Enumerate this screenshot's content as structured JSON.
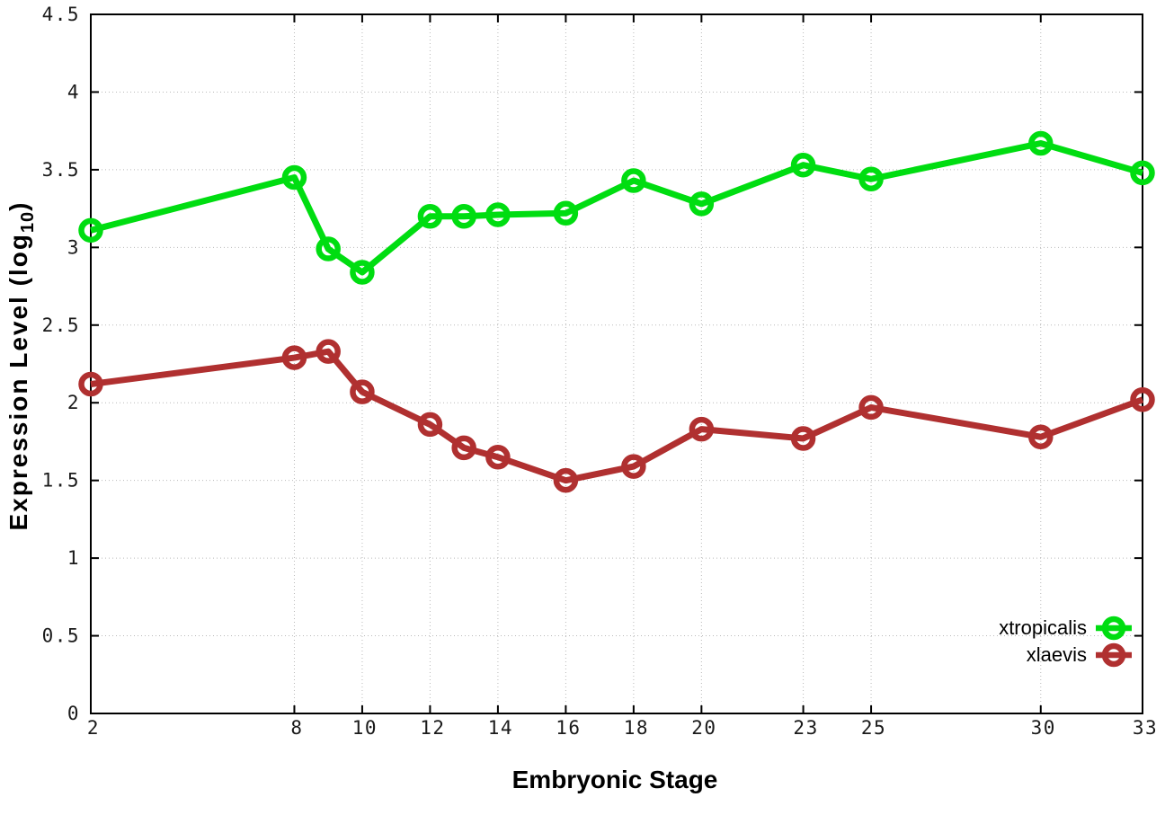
{
  "chart_data": {
    "type": "line",
    "title": "",
    "xlabel": "Embryonic Stage",
    "ylabel": "Expression Level (log10)",
    "ylabel_parts": {
      "main": "Expression Level (log",
      "sub": "10",
      "close": ")"
    },
    "xlim": [
      2,
      33
    ],
    "ylim": [
      0,
      4.5
    ],
    "x_ticks": [
      2,
      8,
      10,
      12,
      14,
      16,
      18,
      20,
      23,
      25,
      30,
      33
    ],
    "y_ticks": [
      0,
      0.5,
      1,
      1.5,
      2,
      2.5,
      3,
      3.5,
      4,
      4.5
    ],
    "grid": true,
    "legend_position": "bottom-right",
    "x": [
      2,
      8,
      9,
      10,
      12,
      13,
      14,
      16,
      18,
      20,
      23,
      25,
      30,
      33
    ],
    "series": [
      {
        "name": "xtropicalis",
        "color": "#00dd11",
        "values": [
          3.11,
          3.45,
          2.99,
          2.84,
          3.2,
          3.2,
          3.21,
          3.22,
          3.43,
          3.28,
          3.53,
          3.44,
          3.67,
          3.48
        ]
      },
      {
        "name": "xlaevis",
        "color": "#b03030",
        "values": [
          2.12,
          2.29,
          2.33,
          2.07,
          1.86,
          1.71,
          1.65,
          1.5,
          1.59,
          1.83,
          1.77,
          1.97,
          1.78,
          2.02
        ]
      }
    ],
    "axis_color": "#000000",
    "grid_color": "#b9b9b9",
    "text_color": "#1a1a1a"
  }
}
